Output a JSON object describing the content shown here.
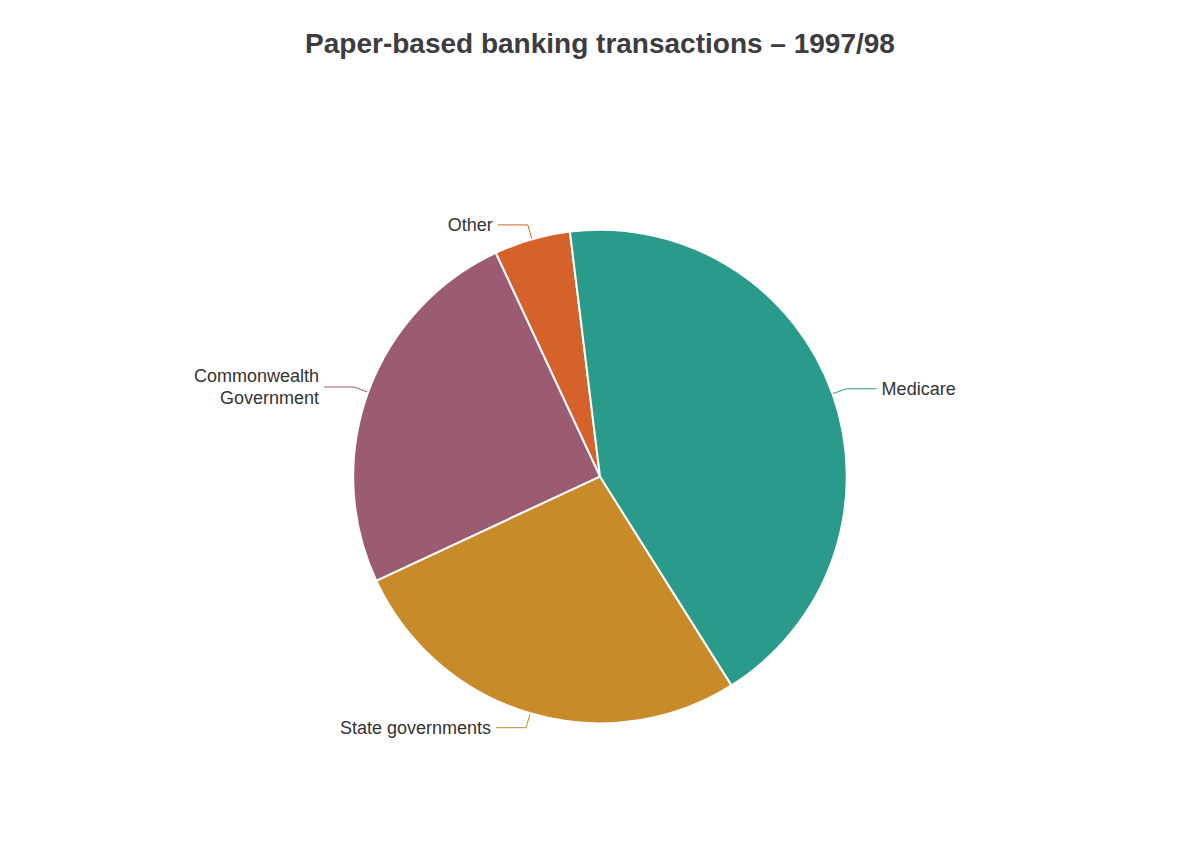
{
  "chart_data": {
    "type": "pie",
    "title": "Paper-based banking transactions – 1997/98",
    "categories": [
      "Other",
      "Commonwealth\nGovernment",
      "State governments",
      "Medicare"
    ],
    "values": [
      5,
      25,
      27,
      43
    ],
    "colors": [
      "#d4622a",
      "#9b5b72",
      "#c98a2a",
      "#2a9b8a"
    ]
  }
}
